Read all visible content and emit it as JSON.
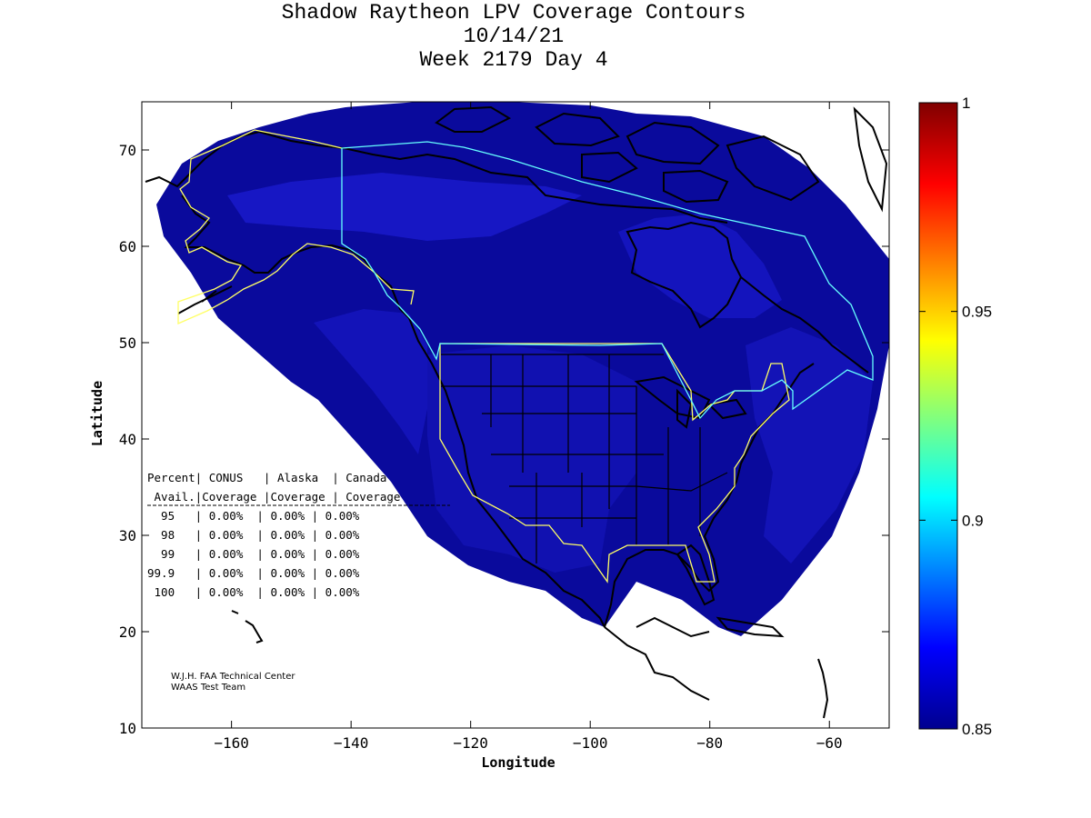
{
  "title": {
    "line1": "Shadow Raytheon LPV Coverage Contours",
    "line2": "10/14/21",
    "line3": "Week 2179 Day 4"
  },
  "axes": {
    "xlabel": "Longitude",
    "ylabel": "Latitude",
    "xlim": [
      -175,
      -50
    ],
    "ylim": [
      10,
      75
    ],
    "xticks": [
      -160,
      -140,
      -120,
      -100,
      -80,
      -60
    ],
    "yticks": [
      10,
      20,
      30,
      40,
      50,
      60,
      70
    ]
  },
  "colorbar": {
    "range": [
      0.85,
      1
    ],
    "ticks": [
      {
        "value": 1,
        "label": "1"
      },
      {
        "value": 0.95,
        "label": "0.95"
      },
      {
        "value": 0.9,
        "label": "0.9"
      },
      {
        "value": 0.85,
        "label": "0.85"
      }
    ]
  },
  "table": {
    "header1": "Percent| CONUS   | Alaska  | Canada",
    "header2": " Avail.|Coverage |Coverage | Coverage",
    "rows": [
      "  95   | 0.00%  | 0.00% | 0.00%",
      "  98   | 0.00%  | 0.00% | 0.00%",
      "  99   | 0.00%  | 0.00% | 0.00%",
      "99.9   | 0.00%  | 0.00% | 0.00%",
      " 100   | 0.00%  | 0.00% | 0.00%"
    ]
  },
  "credit": {
    "line1": "W.J.H. FAA Technical Center",
    "line2": "WAAS Test Team"
  },
  "colors": {
    "coverage_dark": "#0a0a9c",
    "coverage_mid": "#0f0fb4",
    "coverage_light": "#1818c8",
    "conus_boundary": "#ffff66",
    "canada_boundary": "#66ffff"
  }
}
